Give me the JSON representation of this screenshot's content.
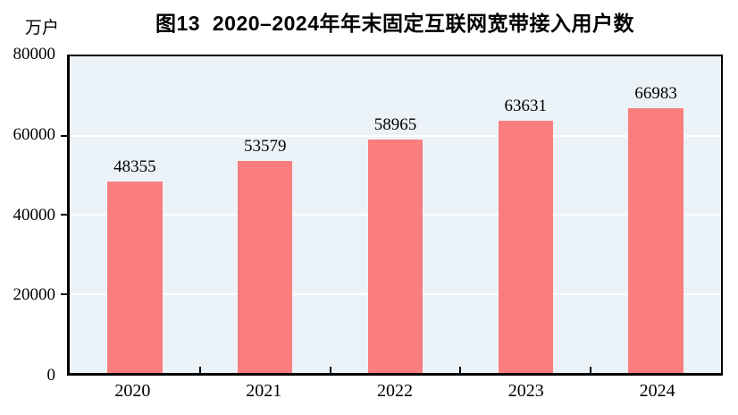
{
  "chart_data": {
    "type": "bar",
    "title": "图13  2020–2024年年末固定互联网宽带接入用户数",
    "unit_label": "万户",
    "categories": [
      "2020",
      "2021",
      "2022",
      "2023",
      "2024"
    ],
    "values": [
      48355,
      53579,
      58965,
      63631,
      66983
    ],
    "ylim": [
      0,
      80000
    ],
    "yticks": [
      0,
      20000,
      40000,
      60000,
      80000
    ],
    "xlabel": "",
    "ylabel": "万户",
    "grid": true,
    "legend_position": "none",
    "value_labels_shown": true,
    "colors": {
      "bar_fill": "#FA7E7E",
      "plot_background": "#ECF3F8",
      "gridline": "#FFFFFF",
      "axis": "#000000",
      "text": "#000000",
      "page_background": "#FFFFFF"
    }
  }
}
